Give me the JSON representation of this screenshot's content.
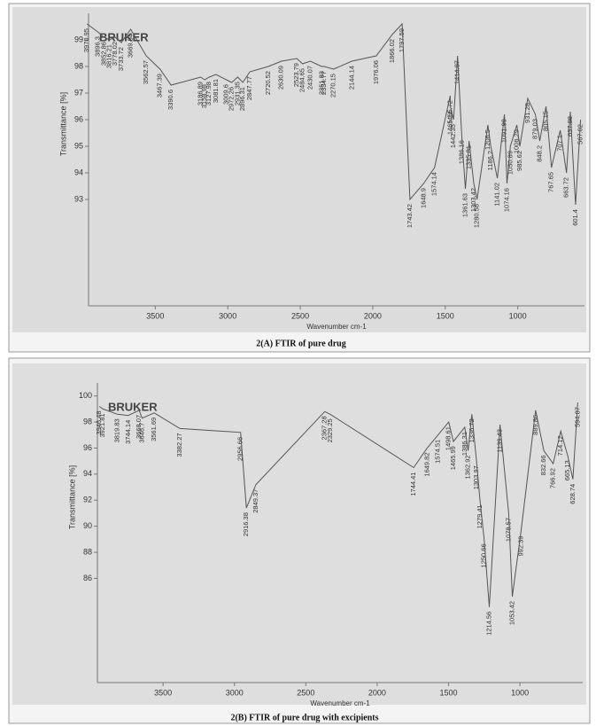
{
  "chart_data": [
    {
      "type": "line",
      "logo": "BRUKER",
      "ylabel": "Transmittance [%]",
      "xlabel": "Wavenumber cm-1",
      "caption": "2(A) FTIR of pure drug",
      "color": "#555555",
      "xlim": [
        3960,
        540
      ],
      "ylim": [
        89,
        100
      ],
      "xticks": [
        3500,
        3000,
        2500,
        2000,
        1500,
        1000
      ],
      "yticks": [
        93,
        94,
        95,
        96,
        97,
        98,
        99
      ],
      "x": [
        3970.95,
        3896.3,
        3852.86,
        3816.21,
        3778.02,
        3733.72,
        3669.54,
        3562.57,
        3467.39,
        3390.6,
        3186.89,
        3158.98,
        3127.98,
        3081.81,
        3009.6,
        2972.26,
        2931.35,
        2896.31,
        2847.77,
        2720.52,
        2630.09,
        2523.79,
        2484.65,
        2430.07,
        2351.83,
        2334.77,
        2270.15,
        2144.14,
        1976.06,
        1866.02,
        1797.59,
        1743.42,
        1648.9,
        1574.14,
        1465.72,
        1465.14,
        1442.35,
        1414.87,
        1386.16,
        1361.63,
        1335.81,
        1303.42,
        1280.58,
        1206.5,
        1186.2,
        1141.02,
        1091.99,
        1074.16,
        1050.89,
        1006.29,
        985.62,
        931.28,
        879.03,
        848.2,
        805.15,
        767.65,
        707.1,
        663.72,
        637.88,
        601.4,
        567.02
      ],
      "values": [
        99.6,
        99.3,
        99.1,
        99.0,
        99.1,
        98.9,
        99.4,
        98.4,
        97.9,
        97.3,
        97.6,
        97.5,
        97.6,
        97.7,
        97.5,
        97.4,
        97.6,
        97.4,
        97.8,
        98.0,
        98.2,
        98.3,
        98.1,
        98.2,
        98.0,
        98.0,
        97.9,
        98.2,
        98.4,
        99.2,
        99.6,
        93.0,
        93.6,
        94.2,
        96.9,
        96.5,
        96.0,
        98.4,
        95.4,
        93.4,
        95.2,
        93.6,
        93.0,
        95.8,
        95.0,
        93.8,
        96.2,
        93.6,
        95.0,
        95.8,
        95.0,
        96.8,
        96.2,
        95.2,
        96.5,
        94.2,
        95.6,
        94.0,
        96.3,
        92.8,
        96.0
      ]
    },
    {
      "type": "line",
      "logo": "BRUKER",
      "ylabel": "Transmittance [%]",
      "xlabel": "Wavenumber cm-1",
      "caption": "2(B) FTIR of pure drug  with excipients",
      "color": "#555555",
      "xlim": [
        3960,
        560
      ],
      "ylim": [
        78,
        101
      ],
      "xticks": [
        3500,
        3000,
        2500,
        2000,
        1500,
        1000
      ],
      "yticks": [
        86,
        88,
        90,
        92,
        94,
        96,
        98,
        100
      ],
      "x": [
        3946.48,
        3921.81,
        3819.83,
        3744.14,
        3668.07,
        3646.7,
        3561.69,
        3382.27,
        2956.66,
        2916.38,
        2849.37,
        2367.28,
        2329.25,
        1744.41,
        1649.82,
        1574.51,
        1498.61,
        1465.99,
        1386.31,
        1362.92,
        1336.72,
        1303.97,
        1279.41,
        1250.66,
        1214.56,
        1139.43,
        1078.57,
        1053.42,
        992.39,
        889.86,
        832.66,
        766.92,
        714.12,
        665.13,
        628.74,
        594.87
      ],
      "values": [
        99.2,
        99.0,
        98.6,
        98.5,
        98.9,
        98.3,
        98.7,
        97.5,
        97.2,
        91.4,
        93.2,
        98.8,
        98.6,
        94.5,
        96.0,
        97.0,
        98.0,
        96.5,
        97.6,
        95.8,
        98.6,
        95.0,
        92.0,
        89.0,
        83.8,
        97.8,
        91.0,
        84.6,
        89.6,
        98.9,
        95.8,
        94.8,
        97.3,
        95.4,
        93.6,
        99.5
      ]
    }
  ]
}
